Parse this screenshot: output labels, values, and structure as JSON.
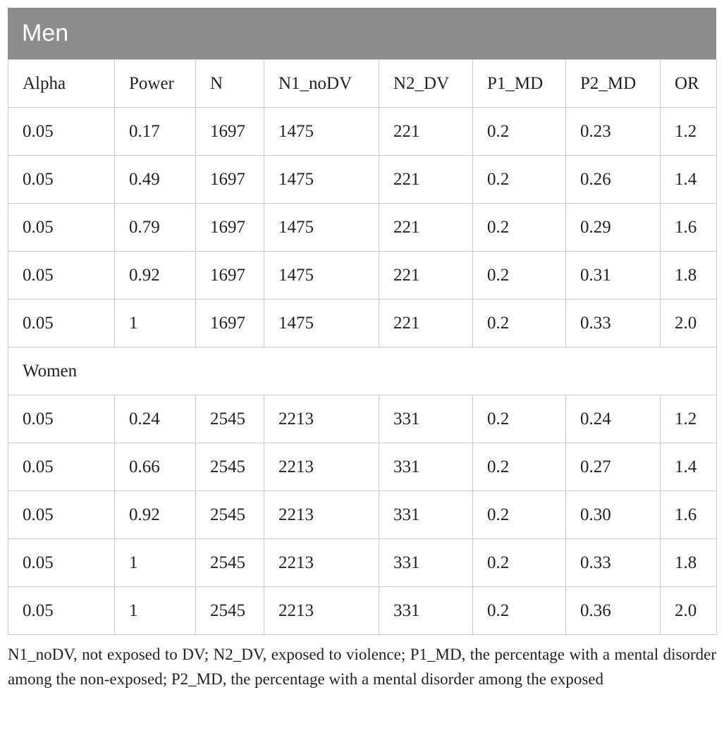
{
  "table": {
    "title": "Men",
    "headers": [
      "Alpha",
      "Power",
      "N",
      "N1_noDV",
      "N2_DV",
      "P1_MD",
      "P2_MD",
      "OR"
    ],
    "men_rows": [
      [
        "0.05",
        "0.17",
        "1697",
        "1475",
        "221",
        "0.2",
        "0.23",
        "1.2"
      ],
      [
        "0.05",
        "0.49",
        "1697",
        "1475",
        "221",
        "0.2",
        "0.26",
        "1.4"
      ],
      [
        "0.05",
        "0.79",
        "1697",
        "1475",
        "221",
        "0.2",
        "0.29",
        "1.6"
      ],
      [
        "0.05",
        "0.92",
        "1697",
        "1475",
        "221",
        "0.2",
        "0.31",
        "1.8"
      ],
      [
        "0.05",
        "1",
        "1697",
        "1475",
        "221",
        "0.2",
        "0.33",
        "2.0"
      ]
    ],
    "women_label": "Women",
    "women_rows": [
      [
        "0.05",
        "0.24",
        "2545",
        "2213",
        "331",
        "0.2",
        "0.24",
        "1.2"
      ],
      [
        "0.05",
        "0.66",
        "2545",
        "2213",
        "331",
        "0.2",
        "0.27",
        "1.4"
      ],
      [
        "0.05",
        "0.92",
        "2545",
        "2213",
        "331",
        "0.2",
        "0.30",
        "1.6"
      ],
      [
        "0.05",
        "1",
        "2545",
        "2213",
        "331",
        "0.2",
        "0.33",
        "1.8"
      ],
      [
        "0.05",
        "1",
        "2545",
        "2213",
        "331",
        "0.2",
        "0.36",
        "2.0"
      ]
    ],
    "footnote": "N1_noDV, not exposed to DV; N2_DV, exposed to violence; P1_MD, the percentage with a mental disorder among the non-exposed; P2_MD, the percentage with a mental disorder among the exposed"
  },
  "colors": {
    "title_bar_bg": "#8c8c8c",
    "title_text": "#ffffff",
    "grid_line": "#c8c8c8"
  }
}
